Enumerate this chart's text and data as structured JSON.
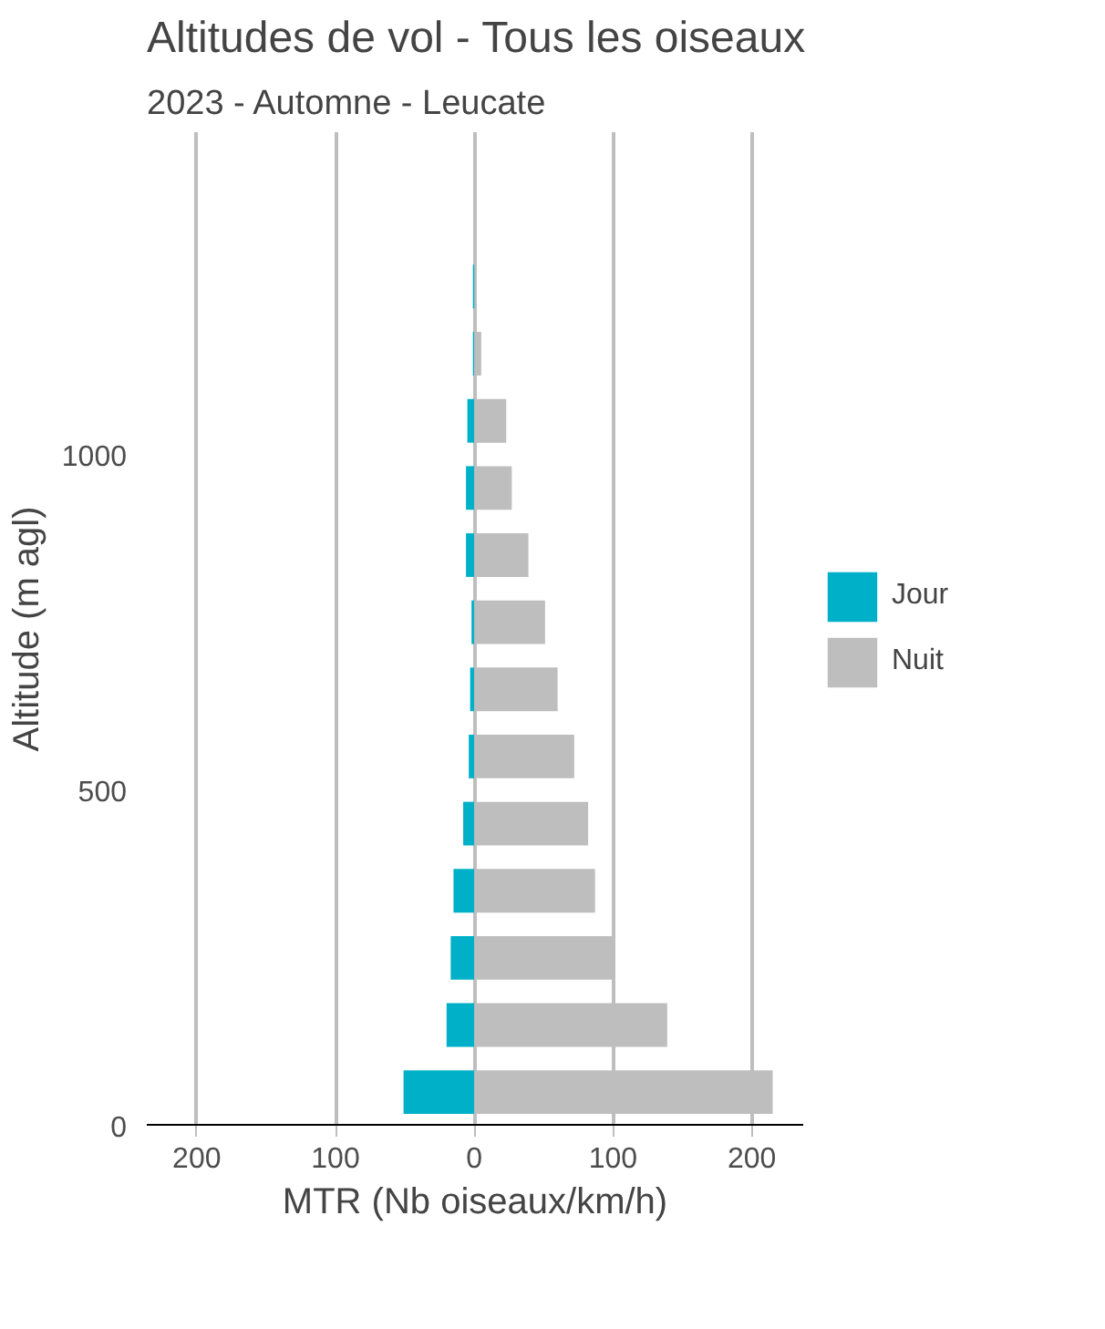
{
  "chart_data": {
    "type": "bar",
    "orientation": "horizontal",
    "stacked": true,
    "title": "Altitudes de vol - Tous les oiseaux",
    "subtitle": "2023 - Automne - Leucate",
    "xlabel": "MTR (Nb oiseaux/km/h)",
    "ylabel": "Altitude (m agl)",
    "x": [
      50,
      150,
      250,
      350,
      450,
      550,
      650,
      750,
      850,
      950,
      1050,
      1150,
      1250
    ],
    "series": [
      {
        "name": "Jour",
        "color": "#00b0c8",
        "values": [
          -51,
          -20,
          -17,
          -15,
          -8,
          -4,
          -3,
          -2,
          -6,
          -6,
          -5,
          -1,
          -1
        ]
      },
      {
        "name": "Nuit",
        "color": "#bebebe",
        "values": [
          215,
          139,
          100,
          87,
          82,
          72,
          60,
          51,
          39,
          27,
          23,
          5,
          0
        ]
      }
    ],
    "xlim": [
      -236,
      237
    ],
    "xticks": [
      {
        "value": -200,
        "label": "200"
      },
      {
        "value": -100,
        "label": "100"
      },
      0,
      100,
      200
    ],
    "ylim": [
      0,
      1480
    ],
    "yticks": [
      0,
      500,
      1000
    ],
    "grid": "x",
    "legend": "right"
  }
}
